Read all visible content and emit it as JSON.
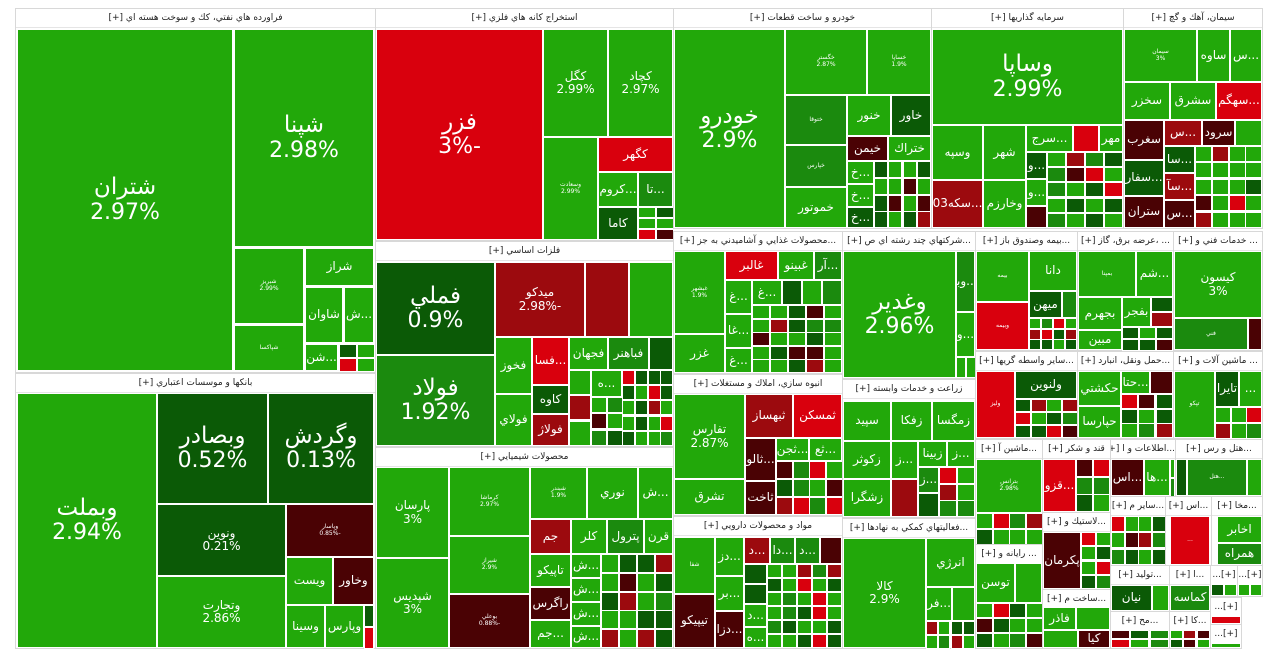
{
  "colors": {
    "G": "#22a80a",
    "g2": "#1b8a0e",
    "g3": "#0b5a06",
    "R": "#d9000d",
    "r2": "#9c0a0e",
    "r3": "#4a0204"
  },
  "sectors": [
    {
      "title": "فراورده هاي نفتي، كك و سوخت هسته اي [+]",
      "tiles": [
        {
          "label": "شتران",
          "pct": "2.97%",
          "tone": "G"
        },
        {
          "label": "شپنا",
          "pct": "2.98%",
          "tone": "G"
        },
        {
          "label": "شبريز",
          "pct": "2.99%",
          "tone": "G"
        },
        {
          "label": "شراز",
          "pct": "",
          "tone": "G"
        },
        {
          "label": "شاوان",
          "pct": "",
          "tone": "G"
        },
        {
          "label": "...ش",
          "pct": "",
          "tone": "G"
        },
        {
          "label": "شپاكسا",
          "pct": "",
          "tone": "G"
        },
        {
          "label": "...شن",
          "pct": "",
          "tone": "G"
        }
      ]
    },
    {
      "title": "بانكها و موسسات اعتباري [+]",
      "tiles": [
        {
          "label": "وبملت",
          "pct": "2.94%",
          "tone": "G"
        },
        {
          "label": "وبصادر",
          "pct": "0.52%",
          "tone": "g3"
        },
        {
          "label": "وگردش",
          "pct": "0.13%",
          "tone": "g3"
        },
        {
          "label": "ونوين",
          "pct": "0.21%",
          "tone": "g3"
        },
        {
          "label": "وتجارت",
          "pct": "2.86%",
          "tone": "G"
        },
        {
          "label": "وپاسار",
          "pct": "-0.85%",
          "tone": "r3"
        },
        {
          "label": "ويست",
          "pct": "",
          "tone": "G"
        },
        {
          "label": "وخاور",
          "pct": "",
          "tone": "r3"
        },
        {
          "label": "وسينا",
          "pct": "",
          "tone": "G"
        },
        {
          "label": "وپارس",
          "pct": "",
          "tone": "G"
        }
      ]
    },
    {
      "title": "استخراج كانه هاي فلزي [+]",
      "tiles": [
        {
          "label": "فزر",
          "pct": "-3%",
          "tone": "R"
        },
        {
          "label": "كگل",
          "pct": "2.99%",
          "tone": "G"
        },
        {
          "label": "كچاد",
          "pct": "2.97%",
          "tone": "G"
        },
        {
          "label": "وسعادت",
          "pct": "2.99%",
          "tone": "G"
        },
        {
          "label": "كگهر",
          "pct": "",
          "tone": "R"
        },
        {
          "label": "...كروم",
          "pct": "",
          "tone": "G"
        },
        {
          "label": "...تا",
          "pct": "",
          "tone": "g2"
        },
        {
          "label": "كاما",
          "pct": "",
          "tone": "g3"
        }
      ]
    },
    {
      "title": "فلزات اساسي [+]",
      "tiles": [
        {
          "label": "فملي",
          "pct": "0.9%",
          "tone": "g3"
        },
        {
          "label": "فولاد",
          "pct": "1.92%",
          "tone": "g2"
        },
        {
          "label": "ميدكو",
          "pct": "-2.98%",
          "tone": "r2"
        },
        {
          "label": "فخوز",
          "pct": "",
          "tone": "G"
        },
        {
          "label": "فولاي",
          "pct": "",
          "tone": "G"
        },
        {
          "label": "...فسا",
          "pct": "",
          "tone": "R"
        },
        {
          "label": "كاوه",
          "pct": "",
          "tone": "g3"
        },
        {
          "label": "فولاژ",
          "pct": "",
          "tone": "r2"
        },
        {
          "label": "فجهان",
          "pct": "",
          "tone": "G"
        },
        {
          "label": "فباهنر",
          "pct": "",
          "tone": "g2"
        },
        {
          "label": "...ه",
          "pct": "",
          "tone": "G"
        }
      ]
    },
    {
      "title": "محصولات شيميايي [+]",
      "tiles": [
        {
          "label": "پارسان",
          "pct": "3%",
          "tone": "G"
        },
        {
          "label": "شپديس",
          "pct": "3%",
          "tone": "G"
        },
        {
          "label": "كرماشا",
          "pct": "2.97%",
          "tone": "G"
        },
        {
          "label": "شيراز",
          "pct": "2.9%",
          "tone": "G"
        },
        {
          "label": "بوعلي",
          "pct": "-0.88%",
          "tone": "r3"
        },
        {
          "label": "شبندر",
          "pct": "1.9%",
          "tone": "G"
        },
        {
          "label": "نوري",
          "pct": "",
          "tone": "G"
        },
        {
          "label": "...ش",
          "pct": "",
          "tone": "G"
        },
        {
          "label": "جم",
          "pct": "",
          "tone": "r2"
        },
        {
          "label": "كلر",
          "pct": "",
          "tone": "G"
        },
        {
          "label": "پترول",
          "pct": "",
          "tone": "g2"
        },
        {
          "label": "قرن",
          "pct": "",
          "tone": "G"
        },
        {
          "label": "تاپيكو",
          "pct": "",
          "tone": "G"
        },
        {
          "label": "راگرس",
          "pct": "",
          "tone": "r3"
        },
        {
          "label": "...جم",
          "pct": "",
          "tone": "G"
        },
        {
          "label": "...ش",
          "pct": "",
          "tone": "G"
        },
        {
          "label": "...ش",
          "pct": "",
          "tone": "G"
        },
        {
          "label": "...ش",
          "pct": "",
          "tone": "G"
        },
        {
          "label": "...ش",
          "pct": "",
          "tone": "G"
        }
      ]
    },
    {
      "title": "خودرو و ساخت قطعات [+]",
      "tiles": [
        {
          "label": "خودرو",
          "pct": "2.9%",
          "tone": "G"
        },
        {
          "label": "خگستر",
          "pct": "2.87%",
          "tone": "G"
        },
        {
          "label": "خساپا",
          "pct": "1.9%",
          "tone": "G"
        },
        {
          "label": "ختوقا",
          "pct": "",
          "tone": "g2"
        },
        {
          "label": "خپارس",
          "pct": "",
          "tone": "g2"
        },
        {
          "label": "خموتور",
          "pct": "",
          "tone": "G"
        },
        {
          "label": "خنور",
          "pct": "",
          "tone": "G"
        },
        {
          "label": "خاور",
          "pct": "",
          "tone": "g3"
        },
        {
          "label": "خيمن",
          "pct": "",
          "tone": "r3"
        },
        {
          "label": "ختراك",
          "pct": "",
          "tone": "G"
        },
        {
          "label": "...خ",
          "pct": "",
          "tone": "G"
        },
        {
          "label": "...خ",
          "pct": "",
          "tone": "G"
        },
        {
          "label": "...خ",
          "pct": "",
          "tone": "g3"
        }
      ]
    },
    {
      "title": "سرمايه گذاريها [+]",
      "tiles": [
        {
          "label": "وساپا",
          "pct": "2.99%",
          "tone": "G"
        },
        {
          "label": "وسپه",
          "pct": "",
          "tone": "G"
        },
        {
          "label": "شهر",
          "pct": "",
          "tone": "G"
        },
        {
          "label": "...سرج",
          "pct": "",
          "tone": "G"
        },
        {
          "label": "مهر",
          "pct": "",
          "tone": "G"
        },
        {
          "label": "...سكه03",
          "pct": "",
          "tone": "r2"
        },
        {
          "label": "وخارزم",
          "pct": "",
          "tone": "G"
        },
        {
          "label": "...و",
          "pct": "",
          "tone": "g3"
        },
        {
          "label": "...و",
          "pct": "",
          "tone": "G"
        }
      ]
    },
    {
      "title": "سيمان، آهك و گچ [+]",
      "tiles": [
        {
          "label": "سيمان",
          "pct": "3%",
          "tone": "G"
        },
        {
          "label": "ساوه",
          "pct": "",
          "tone": "G"
        },
        {
          "label": "...س",
          "pct": "",
          "tone": "G"
        },
        {
          "label": "سخزر",
          "pct": "",
          "tone": "G"
        },
        {
          "label": "سشرق",
          "pct": "",
          "tone": "G"
        },
        {
          "label": "...سهگم",
          "pct": "",
          "tone": "R"
        },
        {
          "label": "سغرب",
          "pct": "",
          "tone": "r3"
        },
        {
          "label": "...س",
          "pct": "",
          "tone": "r2"
        },
        {
          "label": "سرود",
          "pct": "",
          "tone": "r3"
        },
        {
          "label": "...سفار",
          "pct": "",
          "tone": "g3"
        },
        {
          "label": "ستران",
          "pct": "",
          "tone": "r3"
        },
        {
          "label": "...سا",
          "pct": "",
          "tone": "g3"
        },
        {
          "label": "...سآ",
          "pct": "",
          "tone": "r2"
        },
        {
          "label": "...س",
          "pct": "",
          "tone": "r3"
        }
      ]
    },
    {
      "title": "...محصولات غذايي و آشاميدني به جز [+]",
      "tiles": [
        {
          "label": "غبشهر",
          "pct": "1.9%",
          "tone": "G"
        },
        {
          "label": "غزر",
          "pct": "",
          "tone": "G"
        },
        {
          "label": "غالبر",
          "pct": "",
          "tone": "R"
        },
        {
          "label": "غبينو",
          "pct": "",
          "tone": "G"
        },
        {
          "label": "...آر",
          "pct": "",
          "tone": "g2"
        },
        {
          "label": "...غ",
          "pct": "",
          "tone": "G"
        },
        {
          "label": "...غا",
          "pct": "",
          "tone": "G"
        },
        {
          "label": "...غ",
          "pct": "",
          "tone": "G"
        },
        {
          "label": "...غ",
          "pct": "",
          "tone": "G"
        }
      ]
    },
    {
      "title": "...شركتهاي چند رشته اي ص [+]",
      "tiles": [
        {
          "label": "وغدير",
          "pct": "2.96%",
          "tone": "G"
        },
        {
          "label": "...وبا",
          "pct": "",
          "tone": "g2"
        },
        {
          "label": "...و",
          "pct": "",
          "tone": "G"
        }
      ]
    },
    {
      "title": "...بيمه وصندوق باز [+]",
      "tiles": [
        {
          "label": "بيمه",
          "pct": "",
          "tone": "G"
        },
        {
          "label": "وبيمه",
          "pct": "",
          "tone": "R"
        },
        {
          "label": "دانا",
          "pct": "",
          "tone": "G"
        },
        {
          "label": "ميهن",
          "pct": "",
          "tone": "g3"
        }
      ]
    },
    {
      "title": "... ،عرضه برق، گاز [+]",
      "tiles": [
        {
          "label": "بمپنا",
          "pct": "",
          "tone": "G"
        },
        {
          "label": "...شم",
          "pct": "",
          "tone": "G"
        },
        {
          "label": "بجهرم",
          "pct": "",
          "tone": "G"
        },
        {
          "label": "مبين",
          "pct": "",
          "tone": "G"
        },
        {
          "label": "بفجر",
          "pct": "",
          "tone": "G"
        }
      ]
    },
    {
      "title": "... خدمات فني و [+]",
      "tiles": [
        {
          "label": "كيسون",
          "pct": "3%",
          "tone": "G"
        },
        {
          "label": "فني",
          "pct": "",
          "tone": "g2"
        }
      ]
    },
    {
      "title": "...ساير واسطه گريها [+]",
      "tiles": [
        {
          "label": "وليز",
          "pct": "",
          "tone": "R"
        },
        {
          "label": "ولنوين",
          "pct": "",
          "tone": "g3"
        }
      ]
    },
    {
      "title": "...حمل ونقل، انبارد [+]",
      "tiles": [
        {
          "label": "حكشتي",
          "pct": "",
          "tone": "G"
        },
        {
          "label": "حپارسا",
          "pct": "",
          "tone": "G"
        },
        {
          "label": "...حتا",
          "pct": "",
          "tone": "G"
        }
      ]
    },
    {
      "title": "... ماشين آلات و [+]",
      "tiles": [
        {
          "label": "تپكو",
          "pct": "",
          "tone": "G"
        },
        {
          "label": "تايرا",
          "pct": "",
          "tone": "g3"
        },
        {
          "label": "...",
          "pct": "",
          "tone": "G"
        }
      ]
    },
    {
      "title": "...ماشين آ [+]",
      "tiles": [
        {
          "label": "بترانس",
          "pct": "2.98%",
          "tone": "G"
        }
      ]
    },
    {
      "title": "قند و شكر [+]",
      "tiles": [
        {
          "label": "...قزو",
          "pct": "",
          "tone": "R"
        }
      ]
    },
    {
      "title": "...اطلاعات و ا [+]",
      "tiles": [
        {
          "label": "...اس",
          "pct": "",
          "tone": "r3"
        },
        {
          "label": "...ها",
          "pct": "",
          "tone": "G"
        }
      ]
    },
    {
      "title": "...هتل و رس [+]",
      "tiles": [
        {
          "label": "...هتل",
          "pct": "",
          "tone": "g2"
        }
      ]
    },
    {
      "title": "...لاستيك و [+]",
      "tiles": [
        {
          "label": "پكرمان",
          "pct": "",
          "tone": "r3"
        }
      ]
    },
    {
      "title": "... رايانه و [+]",
      "tiles": [
        {
          "label": "توسن",
          "pct": "",
          "tone": "G"
        }
      ]
    },
    {
      "title": "...ساخت م [+]",
      "tiles": [
        {
          "label": "فاذر",
          "pct": "",
          "tone": "G"
        },
        {
          "label": "كيا",
          "pct": "",
          "tone": "r3"
        }
      ]
    },
    {
      "title": "...ساير م [+]",
      "tiles": []
    },
    {
      "title": "...اس [+]",
      "tiles": [
        {
          "label": "...",
          "pct": "",
          "tone": "R"
        }
      ]
    },
    {
      "title": "...مخا [+]",
      "tiles": [
        {
          "label": "اخابر",
          "pct": "",
          "tone": "G"
        },
        {
          "label": "همراه",
          "pct": "",
          "tone": "g2"
        }
      ]
    },
    {
      "title": "...توليد [+]",
      "tiles": [
        {
          "label": "نيان",
          "pct": "",
          "tone": "g3"
        }
      ]
    },
    {
      "title": "...ا [+]",
      "tiles": [
        {
          "label": "كماسه",
          "pct": "",
          "tone": "g2"
        }
      ]
    },
    {
      "title": "[+]...",
      "tiles": []
    },
    {
      "title": "[+]...",
      "tiles": []
    },
    {
      "title": "...مح [+]",
      "tiles": []
    },
    {
      "title": "...كا [+]",
      "tiles": []
    },
    {
      "title": "[+]...",
      "tiles": []
    },
    {
      "title": "[+]...",
      "tiles": []
    },
    {
      "title": "انبوه سازي، املاك و مستغلات [+]",
      "tiles": [
        {
          "label": "تفارس",
          "pct": "2.87%",
          "tone": "G"
        },
        {
          "label": "تشرق",
          "pct": "",
          "tone": "G"
        },
        {
          "label": "ثبهساز",
          "pct": "",
          "tone": "r2"
        },
        {
          "label": "ثمسكن",
          "pct": "",
          "tone": "R"
        },
        {
          "label": "...ثالو",
          "pct": "",
          "tone": "r3"
        },
        {
          "label": "...ثجن",
          "pct": "",
          "tone": "G"
        },
        {
          "label": "...ثع",
          "pct": "",
          "tone": "G"
        },
        {
          "label": "ثاخت",
          "pct": "",
          "tone": "r3"
        }
      ]
    },
    {
      "title": "زراعت و خدمات وابسته [+]",
      "tiles": [
        {
          "label": "سپيد",
          "pct": "",
          "tone": "G"
        },
        {
          "label": "زفكا",
          "pct": "",
          "tone": "G"
        },
        {
          "label": "زمگسا",
          "pct": "",
          "tone": "G"
        },
        {
          "label": "زكوثر",
          "pct": "",
          "tone": "G"
        },
        {
          "label": "...ز",
          "pct": "",
          "tone": "G"
        },
        {
          "label": "زبينا",
          "pct": "",
          "tone": "G"
        },
        {
          "label": "...ز",
          "pct": "",
          "tone": "G"
        },
        {
          "label": "زشگرا",
          "pct": "",
          "tone": "G"
        },
        {
          "label": "",
          "pct": "",
          "tone": "r2"
        },
        {
          "label": "...ز",
          "pct": "",
          "tone": "g2"
        }
      ]
    },
    {
      "title": "مواد و محصولات دارويي [+]",
      "tiles": [
        {
          "label": "شفا",
          "pct": "",
          "tone": "G"
        },
        {
          "label": "تيپيكو",
          "pct": "",
          "tone": "r3"
        },
        {
          "label": "...دز",
          "pct": "",
          "tone": "G"
        },
        {
          "label": "...بر",
          "pct": "",
          "tone": "G"
        },
        {
          "label": "...دزا",
          "pct": "",
          "tone": "r3"
        },
        {
          "label": "...د",
          "pct": "",
          "tone": "r2"
        },
        {
          "label": "...دا",
          "pct": "",
          "tone": "g2"
        },
        {
          "label": "...د",
          "pct": "",
          "tone": "g2"
        },
        {
          "label": "...د",
          "pct": "",
          "tone": "G"
        },
        {
          "label": "...ه",
          "pct": "",
          "tone": "G"
        }
      ]
    },
    {
      "title": "...فعاليتهاي كمكي به نهادها [+]",
      "tiles": [
        {
          "label": "كالا",
          "pct": "2.9%",
          "tone": "G"
        },
        {
          "label": "انرژي",
          "pct": "",
          "tone": "G"
        },
        {
          "label": "...فر",
          "pct": "",
          "tone": "G"
        }
      ]
    }
  ]
}
